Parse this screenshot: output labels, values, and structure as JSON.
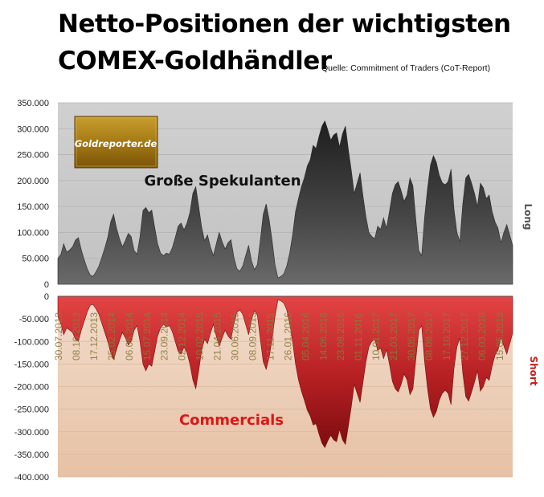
{
  "chart_data": {
    "type": "area",
    "title_line1": "Netto-Positionen der wichtigsten",
    "title_line2": "COMEX-Goldhändler",
    "source": "Quelle: Commitment of Traders (CoT-Report)",
    "logo_text": "Goldreporter.de",
    "ylabel_top": "Long",
    "ylabel_bottom": "Short",
    "top_panel": {
      "ylim": [
        0,
        350000
      ],
      "ticks": [
        "0",
        "50.000",
        "100.000",
        "150.000",
        "200.000",
        "250.000",
        "300.000",
        "350.000"
      ],
      "tick_values": [
        0,
        50000,
        100000,
        150000,
        200000,
        250000,
        300000,
        350000
      ]
    },
    "bottom_panel": {
      "ylim": [
        -400000,
        0
      ],
      "ticks": [
        "0",
        "-50.000",
        "-100.000",
        "-150.000",
        "-200.000",
        "-250.000",
        "-300.000",
        "-350.000",
        "-400.000"
      ],
      "tick_values": [
        0,
        -50000,
        -100000,
        -150000,
        -200000,
        -250000,
        -300000,
        -350000,
        -400000
      ]
    },
    "x_tick_labels": [
      "30.07.2013",
      "08.10.2013",
      "17.12.2013",
      "25.02.2014",
      "06.05.2014",
      "15.07.2014",
      "23.09.2014",
      "02.12.2014",
      "10.02.2015",
      "21.04.2015",
      "30.06.2015",
      "08.09.2015",
      "17.11.2015",
      "26.01.2016",
      "05.04.2016",
      "14.06.2016",
      "23.08.2016",
      "01.11.2016",
      "10.01.2017",
      "21.03.2017",
      "30.05.2017",
      "08.08.2017",
      "17.10.2017",
      "27.12.2017",
      "06.03.2018",
      "15.05.2018"
    ],
    "series": [
      {
        "name": "Große Spekulanten",
        "color": "#404040",
        "values": [
          50000,
          57000,
          78000,
          62000,
          66000,
          72000,
          85000,
          90000,
          66000,
          47000,
          30000,
          18000,
          15000,
          24000,
          35000,
          52000,
          70000,
          90000,
          120000,
          135000,
          108000,
          88000,
          72000,
          84000,
          98000,
          92000,
          65000,
          58000,
          92000,
          142000,
          148000,
          138000,
          143000,
          110000,
          78000,
          60000,
          55000,
          60000,
          58000,
          70000,
          90000,
          112000,
          118000,
          105000,
          118000,
          138000,
          175000,
          188000,
          150000,
          110000,
          84000,
          95000,
          72000,
          55000,
          78000,
          100000,
          82000,
          68000,
          80000,
          86000,
          52000,
          30000,
          25000,
          35000,
          55000,
          75000,
          45000,
          28000,
          38000,
          85000,
          135000,
          155000,
          125000,
          85000,
          38000,
          12000,
          15000,
          20000,
          35000,
          60000,
          95000,
          140000,
          165000,
          188000,
          205000,
          228000,
          240000,
          268000,
          262000,
          285000,
          305000,
          315000,
          298000,
          278000,
          288000,
          292000,
          265000,
          290000,
          305000,
          260000,
          220000,
          175000,
          195000,
          215000,
          170000,
          130000,
          100000,
          92000,
          88000,
          112000,
          106000,
          128000,
          108000,
          140000,
          175000,
          192000,
          198000,
          180000,
          160000,
          172000,
          205000,
          190000,
          125000,
          65000,
          55000,
          130000,
          185000,
          230000,
          248000,
          235000,
          210000,
          196000,
          192000,
          198000,
          222000,
          145000,
          100000,
          82000,
          155000,
          205000,
          212000,
          195000,
          175000,
          150000,
          195000,
          186000,
          165000,
          172000,
          140000,
          120000,
          108000,
          80000,
          100000,
          115000,
          95000,
          75000
        ]
      },
      {
        "name": "Commercials",
        "color": "#c0202a",
        "values": [
          -45000,
          -60000,
          -85000,
          -70000,
          -75000,
          -80000,
          -95000,
          -100000,
          -75000,
          -55000,
          -35000,
          -20000,
          -18000,
          -28000,
          -40000,
          -60000,
          -80000,
          -100000,
          -125000,
          -140000,
          -118000,
          -98000,
          -80000,
          -92000,
          -108000,
          -100000,
          -75000,
          -65000,
          -100000,
          -150000,
          -165000,
          -150000,
          -155000,
          -122000,
          -88000,
          -70000,
          -62000,
          -68000,
          -65000,
          -78000,
          -100000,
          -122000,
          -128000,
          -112000,
          -125000,
          -150000,
          -185000,
          -205000,
          -165000,
          -120000,
          -95000,
          -105000,
          -82000,
          -62000,
          -88000,
          -110000,
          -92000,
          -75000,
          -88000,
          -95000,
          -60000,
          -36000,
          -30000,
          -40000,
          -62000,
          -85000,
          -52000,
          -32000,
          -42000,
          -95000,
          -145000,
          -162000,
          -135000,
          -95000,
          -45000,
          -8000,
          -10000,
          -15000,
          -30000,
          -60000,
          -100000,
          -150000,
          -185000,
          -210000,
          -230000,
          -252000,
          -265000,
          -285000,
          -282000,
          -305000,
          -325000,
          -335000,
          -320000,
          -308000,
          -318000,
          -322000,
          -295000,
          -318000,
          -328000,
          -288000,
          -245000,
          -195000,
          -215000,
          -235000,
          -190000,
          -145000,
          -112000,
          -100000,
          -95000,
          -120000,
          -115000,
          -138000,
          -118000,
          -150000,
          -188000,
          -205000,
          -212000,
          -195000,
          -172000,
          -185000,
          -218000,
          -205000,
          -140000,
          -75000,
          -65000,
          -145000,
          -205000,
          -250000,
          -268000,
          -255000,
          -230000,
          -215000,
          -208000,
          -215000,
          -240000,
          -160000,
          -112000,
          -92000,
          -170000,
          -222000,
          -232000,
          -212000,
          -190000,
          -165000,
          -210000,
          -200000,
          -180000,
          -186000,
          -155000,
          -130000,
          -120000,
          -90000,
          -110000,
          -128000,
          -105000,
          -82000
        ]
      }
    ]
  }
}
